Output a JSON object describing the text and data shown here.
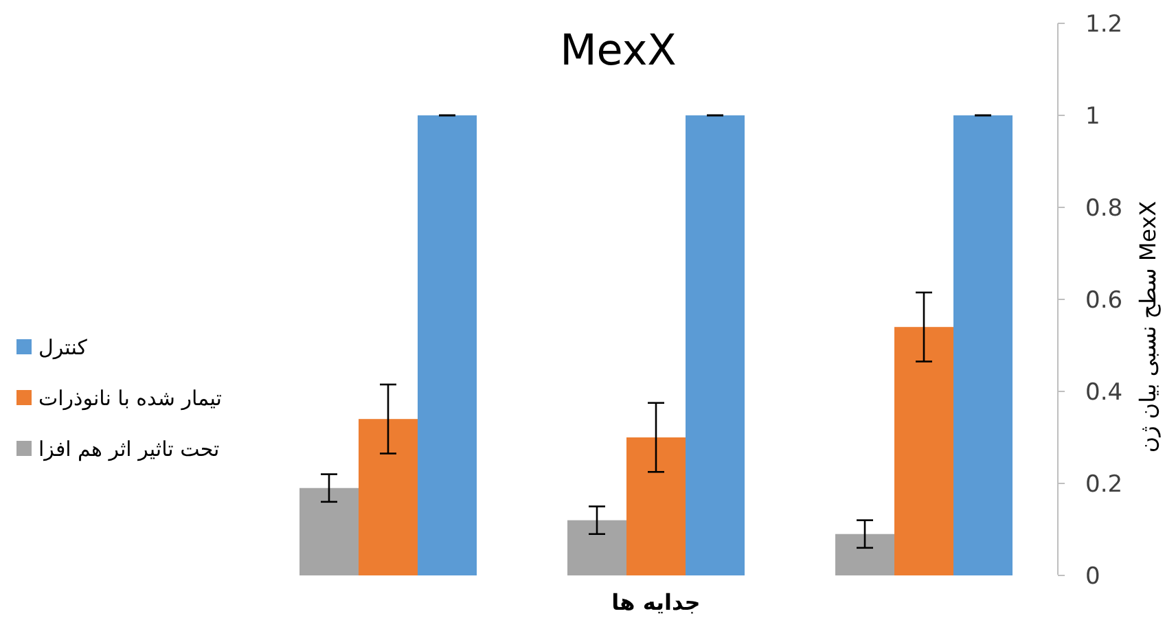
{
  "chart_data": {
    "type": "bar",
    "title": "MexX",
    "xlabel": "جدایه ها",
    "ylabel": "سطح نسبی بیان ژن MexX",
    "categories": [
      null,
      null,
      null
    ],
    "series": [
      {
        "name": "تحت تاثیر اثر هم افزا",
        "color": "#a5a5a5",
        "values": [
          0.19,
          0.12,
          0.09
        ],
        "errors": [
          0.03,
          0.03,
          0.03
        ]
      },
      {
        "name": "تیمار شده با نانوذرات",
        "color": "#ed7d31",
        "values": [
          0.34,
          0.3,
          0.54
        ],
        "errors": [
          0.075,
          0.075,
          0.075
        ]
      },
      {
        "name": "کنترل",
        "color": "#5b9bd5",
        "values": [
          1,
          1,
          1
        ],
        "errors": [
          0,
          0,
          0
        ]
      }
    ],
    "ylim": [
      0,
      1.2
    ],
    "yticks": [
      0,
      0.2,
      0.4,
      0.6,
      0.8,
      1,
      1.2
    ],
    "grid": false,
    "legend": "left"
  }
}
